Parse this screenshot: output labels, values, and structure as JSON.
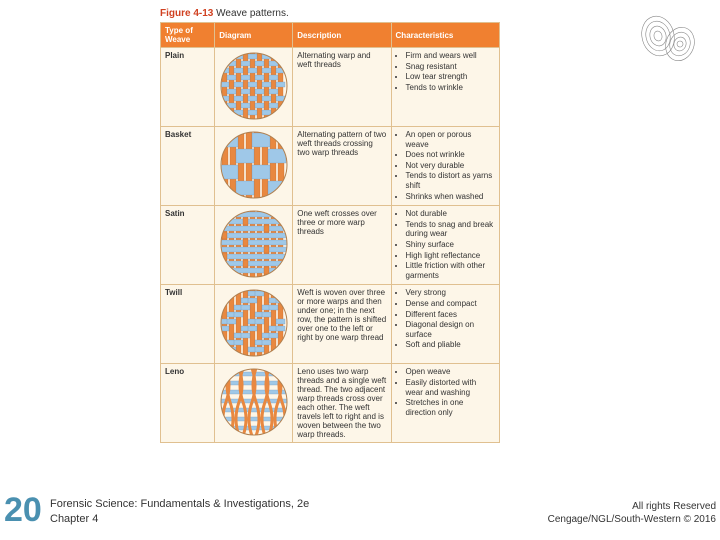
{
  "figure": {
    "number": "Figure 4-13",
    "caption": "Weave patterns."
  },
  "headers": {
    "col1": "Type of Weave",
    "col2": "Diagram",
    "col3": "Description",
    "col4": "Characteristics"
  },
  "weave_colors": {
    "warp": "#e88840",
    "weft": "#9fc8e8",
    "outline": "#c06020"
  },
  "rows": [
    {
      "type": "Plain",
      "desc": "Alternating warp and weft threads",
      "chars": [
        "Firm and wears well",
        "Snag resistant",
        "Low tear strength",
        "Tends to wrinkle"
      ]
    },
    {
      "type": "Basket",
      "desc": "Alternating pattern of two weft threads crossing two warp threads",
      "chars": [
        "An open or porous weave",
        "Does not wrinkle",
        "Not very durable",
        "Tends to distort as yarns shift",
        "Shrinks when washed"
      ]
    },
    {
      "type": "Satin",
      "desc": "One weft crosses over three or more warp threads",
      "chars": [
        "Not durable",
        "Tends to snag and break during wear",
        "Shiny surface",
        "High light reflectance",
        "Little friction with other garments"
      ]
    },
    {
      "type": "Twill",
      "desc": "Weft is woven over three or more warps and then under one; in the next row, the pattern is shifted over one to the left or right by one warp thread",
      "chars": [
        "Very strong",
        "Dense and compact",
        "Different faces",
        "Diagonal design on surface",
        "Soft and pliable"
      ]
    },
    {
      "type": "Leno",
      "desc": "Leno uses two warp threads and a single weft thread. The two adjacent warp threads cross over each other. The weft travels left to right and is woven between the two warp threads.",
      "chars": [
        "Open weave",
        "Easily distorted with wear and washing",
        "Stretches in one direction only"
      ]
    }
  ],
  "page_number": "20",
  "footer": {
    "left_line1": "Forensic Science:  Fundamentals & Investigations, 2e",
    "left_line2": "Chapter 4",
    "right_line1": "All rights Reserved",
    "right_line2": "Cengage/NGL/South-Western © 2016"
  }
}
